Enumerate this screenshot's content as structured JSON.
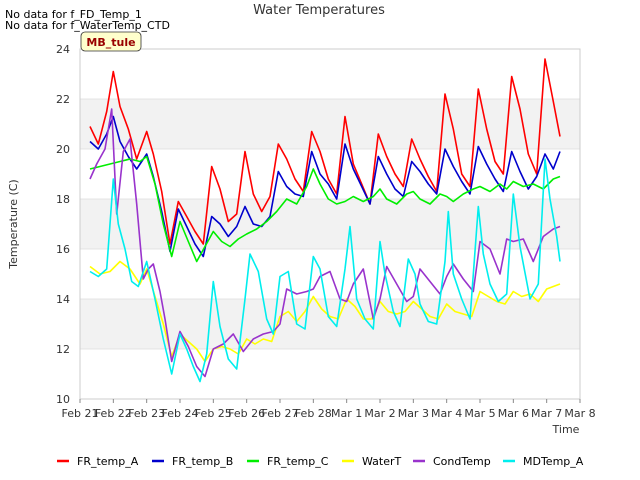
{
  "notes": [
    "No data for f_FD_Temp_1",
    "No data for f_WaterTemp_CTD"
  ],
  "badge": "MB_tule",
  "chart_data": {
    "type": "line",
    "title": "Water Temperatures",
    "xlabel": "Time",
    "ylabel": "Temperature (C)",
    "xlim": [
      0,
      15
    ],
    "ylim": [
      10,
      24
    ],
    "yticks": [
      10,
      12,
      14,
      16,
      18,
      20,
      22,
      24
    ],
    "xtick_labels": [
      "Feb 21",
      "Feb 22",
      "Feb 23",
      "Feb 24",
      "Feb 25",
      "Feb 26",
      "Feb 27",
      "Feb 28",
      "Mar 1",
      "Mar 2",
      "Mar 3",
      "Mar 4",
      "Mar 5",
      "Mar 6",
      "Mar 7",
      "Mar 8"
    ],
    "grid": "horizontal bands",
    "legend": "bottom",
    "series": [
      {
        "name": "FR_temp_A",
        "color": "#ff0000",
        "x": [
          0.3,
          0.55,
          0.8,
          1.0,
          1.2,
          1.45,
          1.7,
          2.0,
          2.2,
          2.45,
          2.7,
          2.95,
          3.2,
          3.45,
          3.7,
          3.95,
          4.2,
          4.45,
          4.7,
          4.95,
          5.2,
          5.45,
          5.7,
          5.95,
          6.2,
          6.45,
          6.7,
          6.95,
          7.2,
          7.45,
          7.7,
          7.95,
          8.2,
          8.45,
          8.7,
          8.95,
          9.2,
          9.45,
          9.7,
          9.95,
          10.2,
          10.45,
          10.7,
          10.95,
          11.2,
          11.45,
          11.7,
          11.95,
          12.2,
          12.45,
          12.7,
          12.95,
          13.2,
          13.45,
          13.7,
          13.95,
          14.2,
          14.4
        ],
        "y": [
          20.9,
          20.2,
          21.5,
          23.1,
          21.7,
          20.8,
          19.6,
          20.7,
          19.8,
          18.3,
          16.2,
          17.9,
          17.3,
          16.7,
          16.2,
          19.3,
          18.4,
          17.1,
          17.4,
          19.9,
          18.2,
          17.5,
          18.1,
          20.2,
          19.6,
          18.8,
          18.3,
          20.7,
          19.9,
          18.8,
          18.2,
          21.3,
          19.4,
          18.6,
          17.8,
          20.6,
          19.7,
          19.0,
          18.5,
          20.4,
          19.6,
          18.9,
          18.3,
          22.2,
          20.8,
          19.0,
          18.5,
          22.4,
          20.8,
          19.5,
          19.0,
          22.9,
          21.6,
          19.8,
          19.0,
          23.6,
          21.9,
          20.5
        ]
      },
      {
        "name": "FR_temp_B",
        "color": "#0000cc",
        "x": [
          0.3,
          0.55,
          0.8,
          1.0,
          1.2,
          1.45,
          1.7,
          2.0,
          2.2,
          2.45,
          2.7,
          2.95,
          3.2,
          3.45,
          3.7,
          3.95,
          4.2,
          4.45,
          4.7,
          4.95,
          5.2,
          5.45,
          5.7,
          5.95,
          6.2,
          6.45,
          6.7,
          6.95,
          7.2,
          7.45,
          7.7,
          7.95,
          8.2,
          8.45,
          8.7,
          8.95,
          9.2,
          9.45,
          9.7,
          9.95,
          10.2,
          10.45,
          10.7,
          10.95,
          11.2,
          11.45,
          11.7,
          11.95,
          12.2,
          12.45,
          12.7,
          12.95,
          13.2,
          13.45,
          13.7,
          13.95,
          14.2,
          14.4
        ],
        "y": [
          20.3,
          20.0,
          20.6,
          21.3,
          20.3,
          19.7,
          19.2,
          19.8,
          18.9,
          17.5,
          15.9,
          17.6,
          16.9,
          16.2,
          15.7,
          17.3,
          17.0,
          16.5,
          16.9,
          17.7,
          17.0,
          16.9,
          17.3,
          19.1,
          18.5,
          18.2,
          18.1,
          19.9,
          19.0,
          18.6,
          18.0,
          20.2,
          19.2,
          18.5,
          17.8,
          19.7,
          19.0,
          18.4,
          18.1,
          19.5,
          19.1,
          18.6,
          18.2,
          20.0,
          19.3,
          18.7,
          18.2,
          20.1,
          19.4,
          18.8,
          18.3,
          19.9,
          19.1,
          18.4,
          18.9,
          19.8,
          19.2,
          19.9
        ]
      },
      {
        "name": "FR_temp_C",
        "color": "#00ee00",
        "x": [
          0.3,
          0.6,
          0.9,
          1.2,
          1.5,
          1.8,
          2.0,
          2.25,
          2.5,
          2.75,
          3.0,
          3.25,
          3.5,
          3.75,
          4.0,
          4.25,
          4.5,
          4.75,
          5.0,
          5.3,
          5.6,
          5.9,
          6.2,
          6.5,
          6.8,
          7.0,
          7.2,
          7.45,
          7.7,
          7.95,
          8.2,
          8.5,
          8.8,
          9.0,
          9.2,
          9.5,
          9.8,
          10.0,
          10.2,
          10.5,
          10.8,
          11.0,
          11.2,
          11.5,
          11.8,
          12.0,
          12.3,
          12.6,
          12.8,
          13.0,
          13.3,
          13.6,
          13.9,
          14.2,
          14.4
        ],
        "y": [
          19.2,
          19.3,
          19.4,
          19.5,
          19.6,
          19.5,
          19.7,
          18.6,
          17.0,
          15.7,
          17.1,
          16.3,
          15.5,
          16.1,
          16.7,
          16.3,
          16.1,
          16.4,
          16.6,
          16.8,
          17.1,
          17.5,
          18.0,
          17.8,
          18.5,
          19.2,
          18.6,
          18.0,
          17.8,
          17.9,
          18.1,
          17.9,
          18.1,
          18.4,
          18.0,
          17.8,
          18.2,
          18.3,
          18.0,
          17.8,
          18.2,
          18.1,
          17.9,
          18.2,
          18.4,
          18.5,
          18.3,
          18.6,
          18.4,
          18.7,
          18.5,
          18.6,
          18.4,
          18.8,
          18.9
        ]
      },
      {
        "name": "WaterT",
        "color": "#ffff00",
        "x": [
          0.3,
          0.6,
          0.9,
          1.2,
          1.5,
          1.8,
          2.0,
          2.25,
          2.5,
          2.75,
          3.0,
          3.25,
          3.5,
          3.75,
          4.0,
          4.25,
          4.5,
          4.75,
          5.0,
          5.25,
          5.5,
          5.75,
          6.0,
          6.25,
          6.5,
          6.75,
          7.0,
          7.25,
          7.5,
          7.75,
          8.0,
          8.25,
          8.5,
          8.75,
          9.0,
          9.25,
          9.5,
          9.75,
          10.0,
          10.25,
          10.5,
          10.75,
          11.0,
          11.25,
          11.5,
          11.75,
          12.0,
          12.25,
          12.5,
          12.75,
          13.0,
          13.25,
          13.5,
          13.75,
          14.0,
          14.2,
          14.4
        ],
        "y": [
          15.3,
          15.0,
          15.1,
          15.5,
          15.2,
          14.6,
          15.2,
          14.1,
          13.0,
          11.7,
          12.6,
          12.3,
          12.0,
          11.5,
          12.0,
          12.1,
          12.0,
          11.8,
          12.4,
          12.2,
          12.4,
          12.3,
          13.3,
          13.5,
          13.1,
          13.5,
          14.1,
          13.6,
          13.3,
          13.2,
          14.0,
          13.7,
          13.2,
          13.2,
          13.9,
          13.5,
          13.4,
          13.5,
          13.9,
          13.6,
          13.3,
          13.2,
          13.8,
          13.5,
          13.4,
          13.3,
          14.3,
          14.1,
          13.9,
          13.8,
          14.3,
          14.1,
          14.2,
          13.9,
          14.4,
          14.5,
          14.6
        ]
      },
      {
        "name": "CondTemp",
        "color": "#9933cc",
        "x": [
          0.3,
          0.5,
          0.75,
          0.95,
          1.1,
          1.3,
          1.5,
          1.7,
          1.9,
          2.05,
          2.2,
          2.4,
          2.55,
          2.75,
          3.0,
          3.25,
          3.5,
          3.75,
          4.0,
          4.3,
          4.6,
          4.9,
          5.2,
          5.5,
          5.8,
          6.0,
          6.2,
          6.5,
          6.8,
          7.0,
          7.2,
          7.5,
          7.8,
          8.0,
          8.2,
          8.5,
          8.8,
          9.0,
          9.2,
          9.5,
          9.8,
          10.0,
          10.2,
          10.5,
          10.8,
          11.0,
          11.2,
          11.5,
          11.8,
          12.0,
          12.3,
          12.6,
          12.8,
          13.0,
          13.3,
          13.6,
          13.9,
          14.2,
          14.4
        ],
        "y": [
          18.8,
          19.4,
          20.0,
          21.6,
          17.4,
          19.9,
          20.4,
          17.8,
          14.8,
          15.2,
          15.4,
          14.3,
          13.2,
          11.5,
          12.7,
          12.1,
          11.3,
          10.9,
          12.0,
          12.2,
          12.6,
          11.9,
          12.4,
          12.6,
          12.7,
          13.0,
          14.4,
          14.2,
          14.3,
          14.4,
          14.9,
          15.1,
          14.0,
          13.9,
          14.6,
          15.2,
          13.2,
          14.0,
          15.3,
          14.6,
          13.9,
          14.1,
          15.2,
          14.7,
          14.2,
          14.9,
          15.4,
          14.8,
          14.3,
          16.3,
          16.0,
          15.0,
          16.4,
          16.3,
          16.4,
          15.5,
          16.5,
          16.8,
          16.9
        ]
      },
      {
        "name": "MDTemp_A",
        "color": "#00eeee",
        "x": [
          0.3,
          0.55,
          0.8,
          1.0,
          1.15,
          1.35,
          1.55,
          1.75,
          2.0,
          2.25,
          2.5,
          2.75,
          3.0,
          3.2,
          3.4,
          3.6,
          3.8,
          4.0,
          4.2,
          4.45,
          4.7,
          4.95,
          5.1,
          5.35,
          5.6,
          5.8,
          6.0,
          6.25,
          6.5,
          6.75,
          7.0,
          7.2,
          7.45,
          7.7,
          7.95,
          8.1,
          8.3,
          8.55,
          8.8,
          9.0,
          9.15,
          9.4,
          9.6,
          9.85,
          10.05,
          10.2,
          10.45,
          10.7,
          10.95,
          11.05,
          11.2,
          11.45,
          11.7,
          11.95,
          12.1,
          12.3,
          12.55,
          12.8,
          13.0,
          13.2,
          13.5,
          13.75,
          13.95,
          14.1,
          14.3,
          14.4
        ],
        "y": [
          15.1,
          14.9,
          15.2,
          18.8,
          17.0,
          16.0,
          14.7,
          14.5,
          15.5,
          14.0,
          12.4,
          11.0,
          12.6,
          12.0,
          11.3,
          10.7,
          11.8,
          14.7,
          12.9,
          11.6,
          11.2,
          14.0,
          15.8,
          15.1,
          13.2,
          12.6,
          14.9,
          15.1,
          13.0,
          12.8,
          15.7,
          15.2,
          13.3,
          12.9,
          15.2,
          16.9,
          14.0,
          13.2,
          12.8,
          16.3,
          15.0,
          13.5,
          12.9,
          15.6,
          15.0,
          13.8,
          13.1,
          13.0,
          15.5,
          17.5,
          15.0,
          14.0,
          13.2,
          17.7,
          15.8,
          14.6,
          13.9,
          14.2,
          18.2,
          16.1,
          14.0,
          14.6,
          19.6,
          18.0,
          16.5,
          15.5
        ]
      }
    ]
  }
}
